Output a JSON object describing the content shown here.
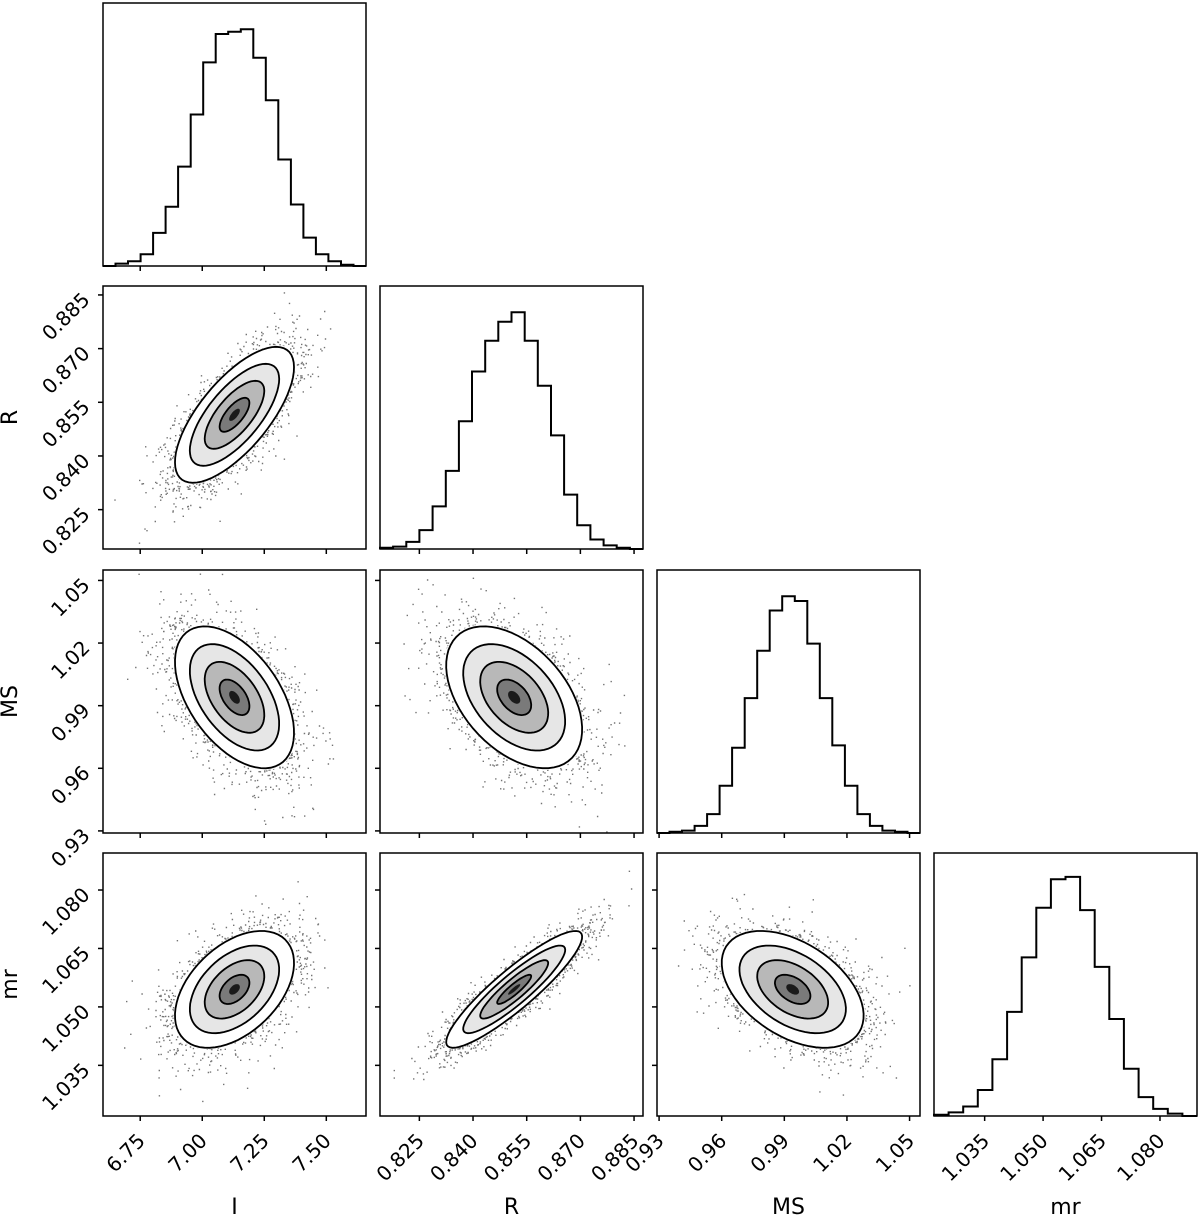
{
  "chart_data": {
    "type": "corner",
    "title": "",
    "parameters": [
      {
        "key": "I",
        "label": "I",
        "range": [
          6.6,
          7.66
        ],
        "ticks": [
          6.75,
          7.0,
          7.25,
          7.5
        ],
        "tick_labels": [
          "6.75",
          "7.00",
          "7.25",
          "7.50"
        ]
      },
      {
        "key": "R",
        "label": "R",
        "range": [
          0.814,
          0.8875
        ],
        "ticks": [
          0.825,
          0.84,
          0.855,
          0.87,
          0.885
        ],
        "tick_labels": [
          "0.825",
          "0.840",
          "0.855",
          "0.870",
          "0.885"
        ]
      },
      {
        "key": "MS",
        "label": "MS",
        "range": [
          0.929,
          1.055
        ],
        "ticks": [
          0.93,
          0.96,
          0.99,
          1.02,
          1.05
        ],
        "tick_labels": [
          "0.93",
          "0.96",
          "0.99",
          "1.02",
          "1.05"
        ]
      },
      {
        "key": "mr",
        "label": "mr",
        "range": [
          1.022,
          1.0895
        ],
        "ticks": [
          1.035,
          1.05,
          1.065,
          1.08
        ],
        "tick_labels": [
          "1.035",
          "1.050",
          "1.065",
          "1.080"
        ]
      }
    ],
    "histograms": [
      {
        "param": "I",
        "bin_edges_range": [
          6.6,
          7.66
        ],
        "counts": [
          0,
          0.01,
          0.02,
          0.05,
          0.14,
          0.25,
          0.42,
          0.64,
          0.86,
          0.98,
          0.99,
          1.0,
          0.88,
          0.7,
          0.45,
          0.26,
          0.12,
          0.05,
          0.02,
          0.005,
          0
        ]
      },
      {
        "param": "R",
        "bin_edges_range": [
          0.814,
          0.8875
        ],
        "counts": [
          0.005,
          0.01,
          0.03,
          0.08,
          0.18,
          0.33,
          0.54,
          0.75,
          0.88,
          0.96,
          1.0,
          0.88,
          0.69,
          0.48,
          0.23,
          0.1,
          0.04,
          0.015,
          0.005,
          0
        ]
      },
      {
        "param": "MS",
        "bin_edges_range": [
          0.929,
          1.055
        ],
        "counts": [
          0,
          0.005,
          0.01,
          0.03,
          0.08,
          0.2,
          0.36,
          0.57,
          0.77,
          0.94,
          1.0,
          0.98,
          0.8,
          0.57,
          0.37,
          0.2,
          0.08,
          0.03,
          0.01,
          0.005,
          0
        ]
      },
      {
        "param": "mr",
        "bin_edges_range": [
          1.022,
          1.0895
        ],
        "counts": [
          0.005,
          0.015,
          0.04,
          0.11,
          0.24,
          0.44,
          0.67,
          0.88,
          1.0,
          1.01,
          0.87,
          0.63,
          0.41,
          0.2,
          0.08,
          0.03,
          0.01,
          0
        ]
      }
    ],
    "pairs": [
      {
        "x": "I",
        "y": "R",
        "mean": [
          7.13,
          0.8515
        ],
        "sd": [
          0.12,
          0.0095
        ],
        "correlation": 0.7
      },
      {
        "x": "I",
        "y": "MS",
        "mean": [
          7.13,
          0.994
        ],
        "sd": [
          0.12,
          0.017
        ],
        "correlation": -0.5
      },
      {
        "x": "R",
        "y": "MS",
        "mean": [
          0.8515,
          0.994
        ],
        "sd": [
          0.0095,
          0.017
        ],
        "correlation": -0.45
      },
      {
        "x": "I",
        "y": "mr",
        "mean": [
          7.13,
          1.0545
        ],
        "sd": [
          0.12,
          0.0075
        ],
        "correlation": 0.45
      },
      {
        "x": "R",
        "y": "mr",
        "mean": [
          0.8515,
          1.0545
        ],
        "sd": [
          0.0095,
          0.0075
        ],
        "correlation": 0.9
      },
      {
        "x": "MS",
        "y": "mr",
        "mean": [
          0.994,
          1.0545
        ],
        "sd": [
          0.017,
          0.0075
        ],
        "correlation": -0.45
      }
    ],
    "contour_levels_sigma": [
      0.5,
      1.0,
      1.5,
      2.0
    ],
    "grid": false,
    "legend": "none",
    "colors": {
      "line": "#000000",
      "background": "#ffffff",
      "points": "#000000"
    }
  }
}
